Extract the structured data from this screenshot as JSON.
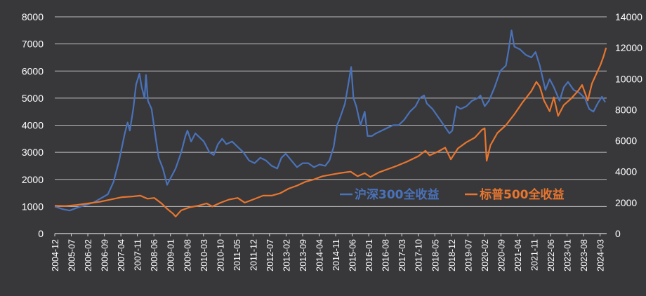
{
  "chart_data": {
    "type": "line",
    "title": "",
    "colors": {
      "background": "#38373a",
      "grid": "#bdbdbd",
      "text": "#ffffff"
    },
    "y_left": {
      "ticks": [
        0,
        1000,
        2000,
        3000,
        4000,
        5000,
        6000,
        7000,
        8000
      ],
      "ylim": [
        0,
        8000
      ]
    },
    "y_right": {
      "ticks": [
        0,
        2000,
        4000,
        6000,
        8000,
        10000,
        12000,
        14000
      ],
      "ylim": [
        0,
        14000
      ]
    },
    "x_tick_labels": [
      "2004-12",
      "2005-07",
      "2006-02",
      "2006-09",
      "2007-04",
      "2007-11",
      "2008-06",
      "2009-01",
      "2009-08",
      "2010-03",
      "2010-10",
      "2011-05",
      "2011-12",
      "2012-07",
      "2013-02",
      "2013-09",
      "2014-04",
      "2014-11",
      "2015-06",
      "2016-01",
      "2016-08",
      "2017-03",
      "2017-10",
      "2018-05",
      "2018-12",
      "2019-07",
      "2020-02",
      "2020-09",
      "2021-04",
      "2021-11",
      "2022-06",
      "2023-01",
      "2023-08",
      "2024-03"
    ],
    "series": [
      {
        "name": "沪深300全收益",
        "axis": "left",
        "color": "#4a72b8",
        "points": [
          [
            2004.92,
            1000
          ],
          [
            2005.2,
            900
          ],
          [
            2005.45,
            850
          ],
          [
            2005.7,
            950
          ],
          [
            2006.0,
            1050
          ],
          [
            2006.3,
            1150
          ],
          [
            2006.55,
            1300
          ],
          [
            2006.8,
            1450
          ],
          [
            2007.0,
            1900
          ],
          [
            2007.2,
            2700
          ],
          [
            2007.4,
            3700
          ],
          [
            2007.5,
            4100
          ],
          [
            2007.58,
            3800
          ],
          [
            2007.7,
            4600
          ],
          [
            2007.8,
            5500
          ],
          [
            2007.92,
            5900
          ],
          [
            2008.0,
            5400
          ],
          [
            2008.1,
            5000
          ],
          [
            2008.15,
            5850
          ],
          [
            2008.22,
            4900
          ],
          [
            2008.35,
            4600
          ],
          [
            2008.5,
            3500
          ],
          [
            2008.6,
            2800
          ],
          [
            2008.75,
            2400
          ],
          [
            2008.9,
            1800
          ],
          [
            2009.0,
            2000
          ],
          [
            2009.2,
            2400
          ],
          [
            2009.4,
            3000
          ],
          [
            2009.55,
            3600
          ],
          [
            2009.62,
            3800
          ],
          [
            2009.75,
            3400
          ],
          [
            2009.9,
            3700
          ],
          [
            2010.0,
            3600
          ],
          [
            2010.2,
            3400
          ],
          [
            2010.4,
            3000
          ],
          [
            2010.55,
            2900
          ],
          [
            2010.7,
            3300
          ],
          [
            2010.85,
            3500
          ],
          [
            2011.0,
            3300
          ],
          [
            2011.2,
            3400
          ],
          [
            2011.4,
            3200
          ],
          [
            2011.6,
            3000
          ],
          [
            2011.8,
            2700
          ],
          [
            2012.0,
            2600
          ],
          [
            2012.2,
            2800
          ],
          [
            2012.4,
            2700
          ],
          [
            2012.6,
            2500
          ],
          [
            2012.8,
            2400
          ],
          [
            2012.95,
            2800
          ],
          [
            2013.1,
            2950
          ],
          [
            2013.3,
            2700
          ],
          [
            2013.5,
            2450
          ],
          [
            2013.7,
            2600
          ],
          [
            2013.9,
            2600
          ],
          [
            2014.1,
            2450
          ],
          [
            2014.3,
            2550
          ],
          [
            2014.5,
            2500
          ],
          [
            2014.65,
            2700
          ],
          [
            2014.8,
            3200
          ],
          [
            2014.92,
            4000
          ],
          [
            2015.0,
            4200
          ],
          [
            2015.2,
            4800
          ],
          [
            2015.35,
            5700
          ],
          [
            2015.42,
            6150
          ],
          [
            2015.5,
            5000
          ],
          [
            2015.6,
            4700
          ],
          [
            2015.75,
            4000
          ],
          [
            2015.9,
            4500
          ],
          [
            2016.0,
            3600
          ],
          [
            2016.15,
            3600
          ],
          [
            2016.3,
            3700
          ],
          [
            2016.5,
            3800
          ],
          [
            2016.7,
            3900
          ],
          [
            2016.9,
            4000
          ],
          [
            2017.1,
            4000
          ],
          [
            2017.3,
            4200
          ],
          [
            2017.5,
            4500
          ],
          [
            2017.7,
            4700
          ],
          [
            2017.85,
            5000
          ],
          [
            2018.0,
            5100
          ],
          [
            2018.1,
            4800
          ],
          [
            2018.3,
            4600
          ],
          [
            2018.5,
            4300
          ],
          [
            2018.7,
            4000
          ],
          [
            2018.9,
            3700
          ],
          [
            2019.0,
            3800
          ],
          [
            2019.15,
            4700
          ],
          [
            2019.3,
            4600
          ],
          [
            2019.5,
            4700
          ],
          [
            2019.7,
            4900
          ],
          [
            2019.9,
            5000
          ],
          [
            2020.0,
            5100
          ],
          [
            2020.15,
            4700
          ],
          [
            2020.3,
            4900
          ],
          [
            2020.5,
            5400
          ],
          [
            2020.7,
            6000
          ],
          [
            2020.9,
            6200
          ],
          [
            2021.0,
            6800
          ],
          [
            2021.1,
            7500
          ],
          [
            2021.2,
            6900
          ],
          [
            2021.4,
            6800
          ],
          [
            2021.6,
            6600
          ],
          [
            2021.8,
            6500
          ],
          [
            2021.95,
            6700
          ],
          [
            2022.1,
            6200
          ],
          [
            2022.3,
            5300
          ],
          [
            2022.45,
            5700
          ],
          [
            2022.6,
            5400
          ],
          [
            2022.8,
            4900
          ],
          [
            2022.95,
            5400
          ],
          [
            2023.1,
            5600
          ],
          [
            2023.3,
            5300
          ],
          [
            2023.5,
            5200
          ],
          [
            2023.7,
            5000
          ],
          [
            2023.85,
            4600
          ],
          [
            2024.0,
            4500
          ],
          [
            2024.15,
            4800
          ],
          [
            2024.3,
            5050
          ],
          [
            2024.42,
            4850
          ]
        ]
      },
      {
        "name": "标普500全收益",
        "axis": "right",
        "color": "#e7762f",
        "points": [
          [
            2004.92,
            1800
          ],
          [
            2005.3,
            1780
          ],
          [
            2005.7,
            1850
          ],
          [
            2006.1,
            1950
          ],
          [
            2006.5,
            2050
          ],
          [
            2006.9,
            2200
          ],
          [
            2007.3,
            2350
          ],
          [
            2007.7,
            2400
          ],
          [
            2007.95,
            2450
          ],
          [
            2008.2,
            2250
          ],
          [
            2008.45,
            2300
          ],
          [
            2008.7,
            1950
          ],
          [
            2008.9,
            1600
          ],
          [
            2009.1,
            1300
          ],
          [
            2009.2,
            1100
          ],
          [
            2009.4,
            1500
          ],
          [
            2009.7,
            1700
          ],
          [
            2010.0,
            1800
          ],
          [
            2010.3,
            1950
          ],
          [
            2010.5,
            1750
          ],
          [
            2010.8,
            2000
          ],
          [
            2011.1,
            2200
          ],
          [
            2011.4,
            2300
          ],
          [
            2011.65,
            2000
          ],
          [
            2011.95,
            2200
          ],
          [
            2012.3,
            2450
          ],
          [
            2012.6,
            2450
          ],
          [
            2012.9,
            2600
          ],
          [
            2013.2,
            2900
          ],
          [
            2013.5,
            3100
          ],
          [
            2013.8,
            3350
          ],
          [
            2014.1,
            3500
          ],
          [
            2014.4,
            3700
          ],
          [
            2014.7,
            3800
          ],
          [
            2015.0,
            3900
          ],
          [
            2015.4,
            4000
          ],
          [
            2015.65,
            3700
          ],
          [
            2015.9,
            3900
          ],
          [
            2016.1,
            3650
          ],
          [
            2016.4,
            3950
          ],
          [
            2016.7,
            4150
          ],
          [
            2017.0,
            4350
          ],
          [
            2017.4,
            4650
          ],
          [
            2017.8,
            5000
          ],
          [
            2018.05,
            5350
          ],
          [
            2018.2,
            5050
          ],
          [
            2018.5,
            5300
          ],
          [
            2018.75,
            5550
          ],
          [
            2018.95,
            4800
          ],
          [
            2019.2,
            5500
          ],
          [
            2019.5,
            5900
          ],
          [
            2019.8,
            6200
          ],
          [
            2020.05,
            6700
          ],
          [
            2020.15,
            6800
          ],
          [
            2020.22,
            4700
          ],
          [
            2020.35,
            5700
          ],
          [
            2020.6,
            6500
          ],
          [
            2020.9,
            7000
          ],
          [
            2021.2,
            7700
          ],
          [
            2021.5,
            8500
          ],
          [
            2021.8,
            9200
          ],
          [
            2021.98,
            9800
          ],
          [
            2022.1,
            9500
          ],
          [
            2022.25,
            8600
          ],
          [
            2022.45,
            7900
          ],
          [
            2022.6,
            8800
          ],
          [
            2022.75,
            7600
          ],
          [
            2022.95,
            8300
          ],
          [
            2023.2,
            8700
          ],
          [
            2023.45,
            9200
          ],
          [
            2023.6,
            9600
          ],
          [
            2023.8,
            8600
          ],
          [
            2023.95,
            9700
          ],
          [
            2024.1,
            10300
          ],
          [
            2024.25,
            10900
          ],
          [
            2024.35,
            11400
          ],
          [
            2024.45,
            12000
          ]
        ]
      }
    ],
    "legend": [
      {
        "label": "沪深300全收益",
        "color": "#4a72b8"
      },
      {
        "label": "标普500全收益",
        "color": "#e7762f"
      }
    ]
  }
}
